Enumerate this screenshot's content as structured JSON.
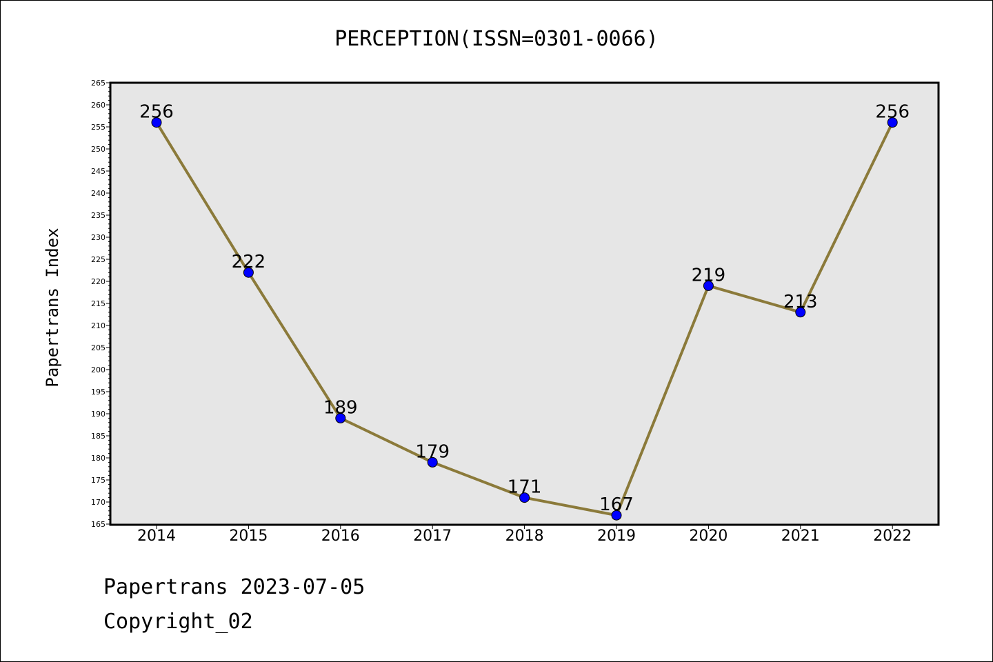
{
  "chart_data": {
    "type": "line",
    "title": "PERCEPTION(ISSN=0301-0066)",
    "ylabel": "Papertrans Index",
    "xlabel": "",
    "categories": [
      "2014",
      "2015",
      "2016",
      "2017",
      "2018",
      "2019",
      "2020",
      "2021",
      "2022"
    ],
    "values": [
      256,
      222,
      189,
      179,
      171,
      167,
      219,
      213,
      256
    ],
    "ylim": [
      165,
      265
    ],
    "ytick_step": 5,
    "grid": false,
    "line_color": "#8b7a3a",
    "marker_color": "#0000ff",
    "plot_background": "#e6e6e6"
  },
  "footer": {
    "date_line": "Papertrans 2023-07-05",
    "copyright_line": "Copyright_02"
  }
}
